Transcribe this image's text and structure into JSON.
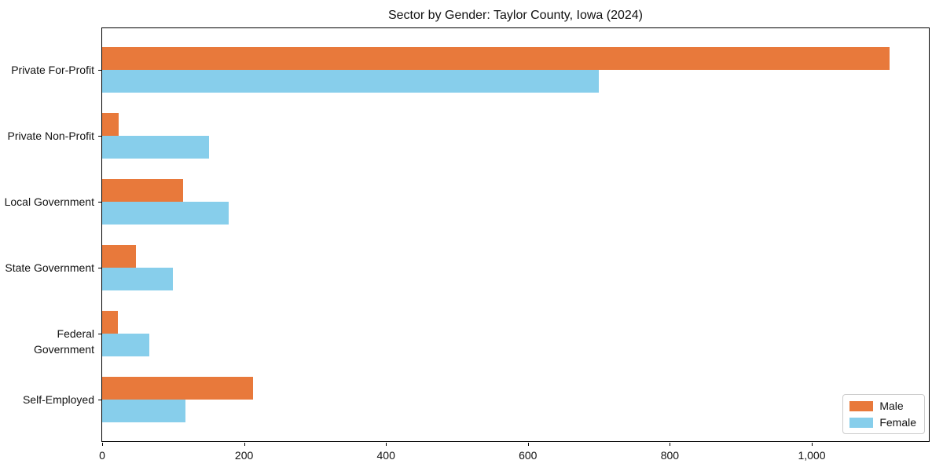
{
  "chart_data": {
    "type": "bar",
    "orientation": "horizontal",
    "title": "Sector by Gender: Taylor County, Iowa (2024)",
    "categories": [
      "Private For-Profit",
      "Private Non-Profit",
      "Local Government",
      "State Government",
      "Federal Government",
      "Self-Employed"
    ],
    "series": [
      {
        "name": "Male",
        "color": "#E8793B",
        "values": [
          1110,
          23,
          114,
          48,
          22,
          213
        ]
      },
      {
        "name": "Female",
        "color": "#87CEEB",
        "values": [
          700,
          151,
          178,
          100,
          66,
          117
        ]
      }
    ],
    "xlabel": "",
    "ylabel": "",
    "xlim": [
      0,
      1165
    ],
    "xticks": [
      0,
      200,
      400,
      600,
      800,
      1000
    ],
    "xtick_labels": [
      "0",
      "200",
      "400",
      "600",
      "800",
      "1,000"
    ],
    "grid": false,
    "legend": {
      "position": "lower right",
      "entries": [
        {
          "label": "Male",
          "color": "#E8793B"
        },
        {
          "label": "Female",
          "color": "#87CEEB"
        }
      ]
    }
  }
}
